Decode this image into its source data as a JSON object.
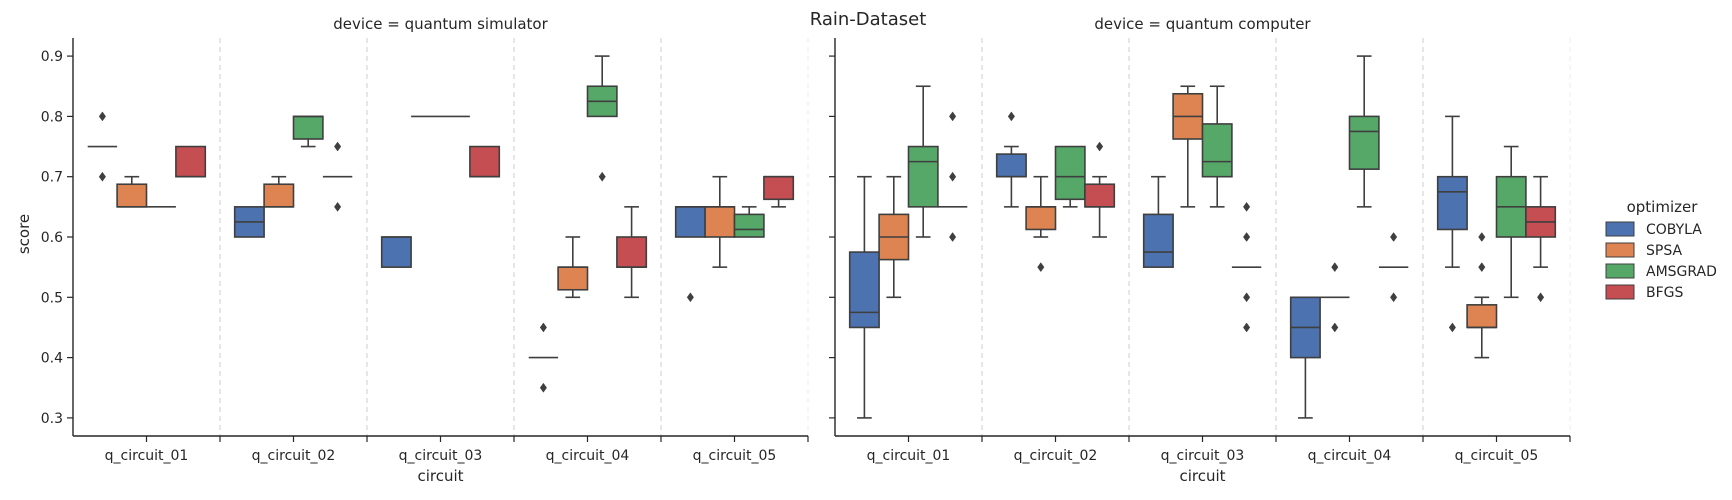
{
  "chart_data": {
    "type": "box",
    "title": "Rain-Dataset",
    "ylabel": "score",
    "xlabel": "circuit",
    "ylim": [
      0.27,
      0.93
    ],
    "yticks": [
      "0.3",
      "0.4",
      "0.5",
      "0.6",
      "0.7",
      "0.8",
      "0.9"
    ],
    "categories": [
      "q_circuit_01",
      "q_circuit_02",
      "q_circuit_03",
      "q_circuit_04",
      "q_circuit_05"
    ],
    "legend": {
      "title": "optimizer",
      "placement": "right",
      "items": [
        {
          "name": "COBYLA",
          "color": "#4c72b0"
        },
        {
          "name": "SPSA",
          "color": "#dd8452"
        },
        {
          "name": "AMSGRAD",
          "color": "#55a868"
        },
        {
          "name": "BFGS",
          "color": "#c44e52"
        }
      ]
    },
    "panels": [
      {
        "title": "device = quantum simulator",
        "groups": [
          [
            {
              "q1": 0.75,
              "median": 0.75,
              "q3": 0.75,
              "whislo": 0.75,
              "whishi": 0.75,
              "fliers": [
                0.8,
                0.7
              ]
            },
            {
              "q1": 0.65,
              "median": 0.65,
              "q3": 0.6875,
              "whislo": 0.65,
              "whishi": 0.7,
              "fliers": []
            },
            {
              "q1": 0.65,
              "median": 0.65,
              "q3": 0.65,
              "whislo": 0.65,
              "whishi": 0.65,
              "fliers": []
            },
            {
              "q1": 0.7,
              "median": 0.7,
              "q3": 0.75,
              "whislo": 0.7,
              "whishi": 0.75,
              "fliers": []
            }
          ],
          [
            {
              "q1": 0.6,
              "median": 0.625,
              "q3": 0.65,
              "whislo": 0.6,
              "whishi": 0.65,
              "fliers": []
            },
            {
              "q1": 0.65,
              "median": 0.65,
              "q3": 0.6875,
              "whislo": 0.65,
              "whishi": 0.7,
              "fliers": []
            },
            {
              "q1": 0.7625,
              "median": 0.8,
              "q3": 0.8,
              "whislo": 0.75,
              "whishi": 0.8,
              "fliers": []
            },
            {
              "q1": 0.7,
              "median": 0.7,
              "q3": 0.7,
              "whislo": 0.7,
              "whishi": 0.7,
              "fliers": [
                0.75,
                0.65
              ]
            }
          ],
          [
            {
              "q1": 0.55,
              "median": 0.6,
              "q3": 0.6,
              "whislo": 0.55,
              "whishi": 0.6,
              "fliers": []
            },
            {
              "q1": 0.8,
              "median": 0.8,
              "q3": 0.8,
              "whislo": 0.8,
              "whishi": 0.8,
              "fliers": []
            },
            {
              "q1": 0.8,
              "median": 0.8,
              "q3": 0.8,
              "whislo": 0.8,
              "whishi": 0.8,
              "fliers": []
            },
            {
              "q1": 0.7,
              "median": 0.7,
              "q3": 0.75,
              "whislo": 0.7,
              "whishi": 0.75,
              "fliers": []
            }
          ],
          [
            {
              "q1": 0.4,
              "median": 0.4,
              "q3": 0.4,
              "whislo": 0.4,
              "whishi": 0.4,
              "fliers": [
                0.45,
                0.35
              ]
            },
            {
              "q1": 0.5125,
              "median": 0.55,
              "q3": 0.55,
              "whislo": 0.5,
              "whishi": 0.6,
              "fliers": []
            },
            {
              "q1": 0.8,
              "median": 0.825,
              "q3": 0.85,
              "whislo": 0.8,
              "whishi": 0.9,
              "fliers": [
                0.7
              ]
            },
            {
              "q1": 0.55,
              "median": 0.55,
              "q3": 0.6,
              "whislo": 0.5,
              "whishi": 0.65,
              "fliers": []
            }
          ],
          [
            {
              "q1": 0.6,
              "median": 0.65,
              "q3": 0.65,
              "whislo": 0.6,
              "whishi": 0.65,
              "fliers": [
                0.5
              ]
            },
            {
              "q1": 0.6,
              "median": 0.65,
              "q3": 0.65,
              "whislo": 0.55,
              "whishi": 0.7,
              "fliers": []
            },
            {
              "q1": 0.6,
              "median": 0.6125,
              "q3": 0.6375,
              "whislo": 0.6,
              "whishi": 0.65,
              "fliers": []
            },
            {
              "q1": 0.6625,
              "median": 0.7,
              "q3": 0.7,
              "whislo": 0.65,
              "whishi": 0.7,
              "fliers": []
            }
          ]
        ]
      },
      {
        "title": "device = quantum computer",
        "groups": [
          [
            {
              "q1": 0.45,
              "median": 0.475,
              "q3": 0.575,
              "whislo": 0.3,
              "whishi": 0.7,
              "fliers": []
            },
            {
              "q1": 0.5625,
              "median": 0.6,
              "q3": 0.6375,
              "whislo": 0.5,
              "whishi": 0.7,
              "fliers": []
            },
            {
              "q1": 0.65,
              "median": 0.725,
              "q3": 0.75,
              "whislo": 0.6,
              "whishi": 0.85,
              "fliers": []
            },
            {
              "q1": 0.65,
              "median": 0.65,
              "q3": 0.65,
              "whislo": 0.65,
              "whishi": 0.65,
              "fliers": [
                0.8,
                0.7,
                0.6
              ]
            }
          ],
          [
            {
              "q1": 0.7,
              "median": 0.7,
              "q3": 0.7375,
              "whislo": 0.65,
              "whishi": 0.75,
              "fliers": [
                0.8
              ]
            },
            {
              "q1": 0.6125,
              "median": 0.65,
              "q3": 0.65,
              "whislo": 0.6,
              "whishi": 0.7,
              "fliers": [
                0.55
              ]
            },
            {
              "q1": 0.6625,
              "median": 0.7,
              "q3": 0.75,
              "whislo": 0.65,
              "whishi": 0.75,
              "fliers": []
            },
            {
              "q1": 0.65,
              "median": 0.65,
              "q3": 0.6875,
              "whislo": 0.6,
              "whishi": 0.7,
              "fliers": [
                0.75
              ]
            }
          ],
          [
            {
              "q1": 0.55,
              "median": 0.575,
              "q3": 0.6375,
              "whislo": 0.55,
              "whishi": 0.7,
              "fliers": []
            },
            {
              "q1": 0.7625,
              "median": 0.8,
              "q3": 0.8375,
              "whislo": 0.65,
              "whishi": 0.85,
              "fliers": []
            },
            {
              "q1": 0.7,
              "median": 0.725,
              "q3": 0.7875,
              "whislo": 0.65,
              "whishi": 0.85,
              "fliers": []
            },
            {
              "q1": 0.55,
              "median": 0.55,
              "q3": 0.55,
              "whislo": 0.55,
              "whishi": 0.55,
              "fliers": [
                0.65,
                0.6,
                0.5,
                0.45
              ]
            }
          ],
          [
            {
              "q1": 0.4,
              "median": 0.45,
              "q3": 0.5,
              "whislo": 0.3,
              "whishi": 0.5,
              "fliers": []
            },
            {
              "q1": 0.5,
              "median": 0.5,
              "q3": 0.5,
              "whislo": 0.5,
              "whishi": 0.5,
              "fliers": [
                0.55,
                0.45
              ]
            },
            {
              "q1": 0.7125,
              "median": 0.775,
              "q3": 0.8,
              "whislo": 0.65,
              "whishi": 0.9,
              "fliers": []
            },
            {
              "q1": 0.55,
              "median": 0.55,
              "q3": 0.55,
              "whislo": 0.55,
              "whishi": 0.55,
              "fliers": [
                0.6,
                0.5
              ]
            }
          ],
          [
            {
              "q1": 0.6125,
              "median": 0.675,
              "q3": 0.7,
              "whislo": 0.55,
              "whishi": 0.8,
              "fliers": [
                0.45
              ]
            },
            {
              "q1": 0.45,
              "median": 0.45,
              "q3": 0.4875,
              "whislo": 0.4,
              "whishi": 0.5,
              "fliers": [
                0.6,
                0.55
              ]
            },
            {
              "q1": 0.6,
              "median": 0.65,
              "q3": 0.7,
              "whislo": 0.5,
              "whishi": 0.75,
              "fliers": []
            },
            {
              "q1": 0.6,
              "median": 0.625,
              "q3": 0.65,
              "whislo": 0.55,
              "whishi": 0.7,
              "fliers": [
                0.5
              ]
            }
          ]
        ]
      }
    ]
  }
}
